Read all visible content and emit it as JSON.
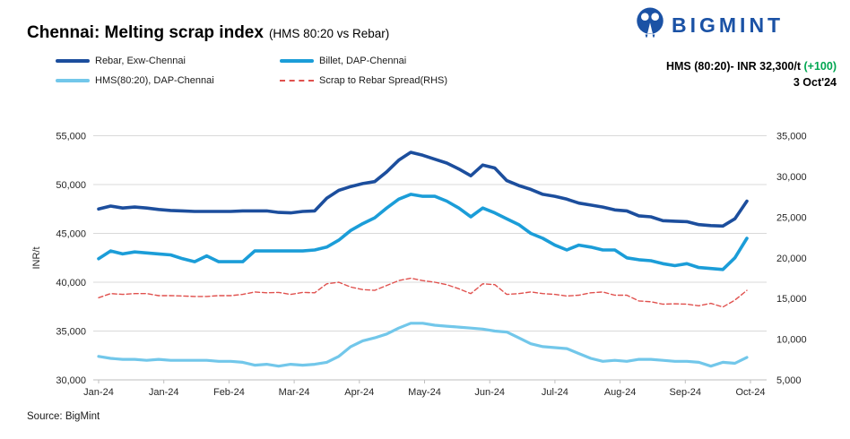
{
  "header": {
    "title": "Chennai: Melting scrap index",
    "subtitle": "(HMS 80:20 vs Rebar)",
    "brand": "BIGMINT",
    "callout": {
      "label": "HMS (80:20)- INR 32,300/t",
      "change": "(+100)",
      "date": "3 Oct'24"
    }
  },
  "colors": {
    "rebar_navy": "#1C4E9D",
    "billet_blue": "#1B9DD8",
    "hms_sky": "#72C7EA",
    "spread_red": "#E0514E",
    "positive_green": "#00A651",
    "brand_blue": "#1B52A5",
    "gridline": "#D9D9D9",
    "axis_line": "#BFBFBF"
  },
  "legend": [
    {
      "label": "Rebar, Exw-Chennai",
      "color": "#1C4E9D",
      "style": "solid"
    },
    {
      "label": "Billet, DAP-Chennai",
      "color": "#1B9DD8",
      "style": "solid"
    },
    {
      "label": "HMS(80:20), DAP-Chennai",
      "color": "#72C7EA",
      "style": "solid"
    },
    {
      "label": "Scrap to Rebar Spread(RHS)",
      "color": "#E0514E",
      "style": "dashed"
    }
  ],
  "chart_data": {
    "type": "line",
    "title": "Chennai: Melting scrap index (HMS 80:20 vs Rebar)",
    "ylabel_left": "INR/t",
    "grid": true,
    "legend_position": "top",
    "x_labels": [
      "Jan-24",
      "Jan-24",
      "Feb-24",
      "Mar-24",
      "Apr-24",
      "May-24",
      "Jun-24",
      "Jul-24",
      "Aug-24",
      "Sep-24",
      "Oct-24"
    ],
    "y_left": {
      "min": 30000,
      "max": 55000,
      "ticks": [
        {
          "v": 55000,
          "label": "55,000"
        },
        {
          "v": 50000,
          "label": "50,000"
        },
        {
          "v": 45000,
          "label": "45,000"
        },
        {
          "v": 40000,
          "label": "40,000"
        },
        {
          "v": 35000,
          "label": "35,000"
        },
        {
          "v": 30000,
          "label": "30,000"
        }
      ]
    },
    "y_right": {
      "min": 5000,
      "max": 35000,
      "ticks": [
        {
          "v": 35000,
          "label": "35,000"
        },
        {
          "v": 30000,
          "label": "30,000"
        },
        {
          "v": 25000,
          "label": "25,000"
        },
        {
          "v": 20000,
          "label": "20,000"
        },
        {
          "v": 15000,
          "label": "15,000"
        },
        {
          "v": 10000,
          "label": "10,000"
        },
        {
          "v": 5000,
          "label": "5,000"
        }
      ]
    },
    "series": [
      {
        "name": "Rebar, Exw-Chennai",
        "axis": "left",
        "color": "#1C4E9D",
        "width": 3.6,
        "dash": null,
        "values": [
          47500,
          47800,
          47600,
          47700,
          47600,
          47450,
          47350,
          47300,
          47250,
          47250,
          47250,
          47250,
          47300,
          47300,
          47300,
          47150,
          47100,
          47250,
          47300,
          48600,
          49400,
          49800,
          50100,
          50300,
          51300,
          52500,
          53300,
          53000,
          52600,
          52200,
          51600,
          50900,
          52000,
          51700,
          50400,
          49900,
          49500,
          49000,
          48800,
          48500,
          48100,
          47900,
          47700,
          47400,
          47300,
          46800,
          46700,
          46300,
          46250,
          46200,
          45900,
          45800,
          45750,
          46500,
          48300
        ]
      },
      {
        "name": "Billet, DAP-Chennai",
        "axis": "left",
        "color": "#1B9DD8",
        "width": 3.6,
        "dash": null,
        "values": [
          42400,
          43200,
          42900,
          43100,
          43000,
          42900,
          42800,
          42400,
          42100,
          42700,
          42100,
          42100,
          42100,
          43200,
          43200,
          43200,
          43200,
          43200,
          43300,
          43600,
          44300,
          45300,
          46000,
          46600,
          47600,
          48500,
          49000,
          48800,
          48800,
          48300,
          47600,
          46700,
          47600,
          47100,
          46500,
          45900,
          45000,
          44500,
          43800,
          43300,
          43800,
          43600,
          43300,
          43300,
          42500,
          42300,
          42200,
          41900,
          41700,
          41900,
          41500,
          41400,
          41300,
          42500,
          44500
        ]
      },
      {
        "name": "HMS(80:20), DAP-Chennai",
        "axis": "left",
        "color": "#72C7EA",
        "width": 3.2,
        "dash": null,
        "values": [
          32400,
          32200,
          32100,
          32100,
          32000,
          32100,
          32000,
          32000,
          32000,
          32000,
          31900,
          31900,
          31800,
          31500,
          31600,
          31400,
          31600,
          31500,
          31600,
          31800,
          32400,
          33400,
          34000,
          34300,
          34700,
          35300,
          35800,
          35800,
          35600,
          35500,
          35400,
          35300,
          35200,
          35000,
          34900,
          34300,
          33700,
          33400,
          33300,
          33200,
          32700,
          32200,
          31900,
          32000,
          31900,
          32100,
          32100,
          32000,
          31900,
          31900,
          31800,
          31400,
          31800,
          31700,
          32300
        ]
      },
      {
        "name": "Scrap to Rebar Spread(RHS)",
        "axis": "right",
        "color": "#E0514E",
        "width": 1.4,
        "dash": "5,3",
        "values": [
          15100,
          15600,
          15500,
          15600,
          15600,
          15350,
          15350,
          15300,
          15250,
          15250,
          15350,
          15350,
          15500,
          15800,
          15700,
          15750,
          15500,
          15750,
          15700,
          16800,
          17000,
          16400,
          16100,
          16000,
          16600,
          17200,
          17500,
          17200,
          17000,
          16700,
          16200,
          15600,
          16800,
          16700,
          15500,
          15600,
          15800,
          15600,
          15500,
          15300,
          15400,
          15700,
          15800,
          15400,
          15400,
          14700,
          14600,
          14300,
          14350,
          14300,
          14100,
          14400,
          13950,
          14800,
          16000
        ]
      }
    ]
  },
  "footer": {
    "source": "Source: BigMint"
  }
}
